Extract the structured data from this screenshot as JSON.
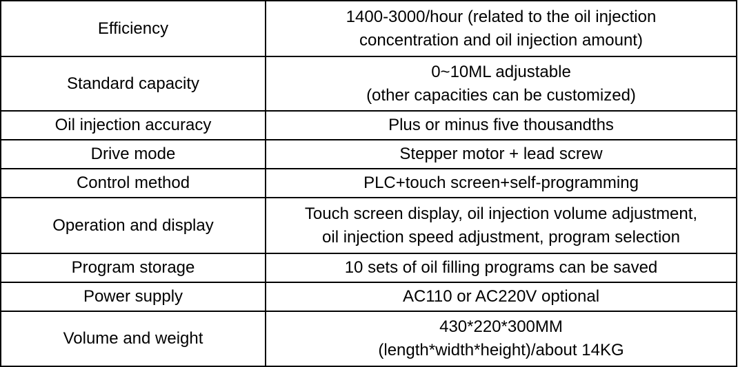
{
  "rows": [
    {
      "label": "Efficiency",
      "value": "1400-3000/hour (related to the oil injection\nconcentration and oil injection amount)"
    },
    {
      "label": "Standard capacity",
      "value": "0~10ML adjustable\n(other capacities can be customized)"
    },
    {
      "label": "Oil injection accuracy",
      "value": "Plus or minus five thousandths"
    },
    {
      "label": "Drive mode",
      "value": "Stepper motor + lead screw"
    },
    {
      "label": "Control method",
      "value": "PLC+touch screen+self-programming"
    },
    {
      "label": "Operation and display",
      "value": "Touch screen display, oil injection volume adjustment,\noil injection speed adjustment, program selection"
    },
    {
      "label": "Program storage",
      "value": "10 sets of oil filling programs can be saved"
    },
    {
      "label": "Power supply",
      "value": "AC110 or AC220V optional"
    },
    {
      "label": "Volume and weight",
      "value": "430*220*300MM\n(length*width*height)/about 14KG"
    }
  ]
}
